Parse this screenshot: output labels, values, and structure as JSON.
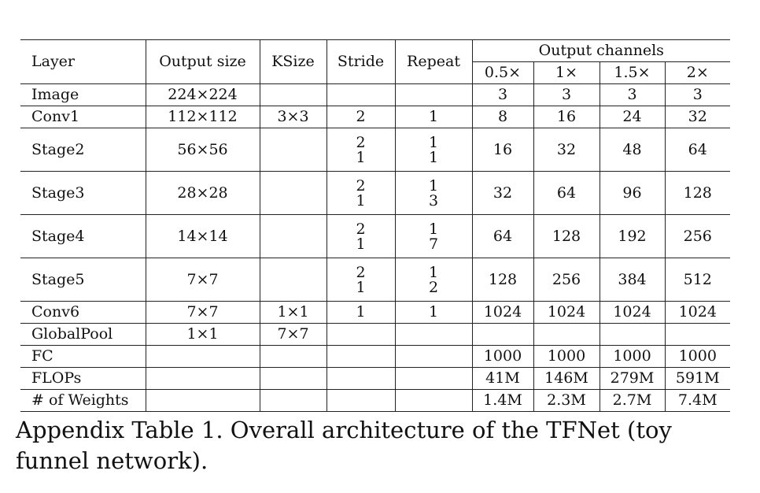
{
  "header": {
    "layer": "Layer",
    "output_size": "Output size",
    "ksize": "KSize",
    "stride": "Stride",
    "repeat": "Repeat",
    "output_channels": "Output channels",
    "channel_scales": [
      "0.5×",
      "1×",
      "1.5×",
      "2×"
    ]
  },
  "rows": [
    {
      "layer": "Image",
      "output_size": "224×224",
      "ksize": "",
      "stride": [
        ""
      ],
      "repeat": [
        ""
      ],
      "channels": [
        "3",
        "3",
        "3",
        "3"
      ]
    },
    {
      "layer": "Conv1",
      "output_size": "112×112",
      "ksize": "3×3",
      "stride": [
        "2"
      ],
      "repeat": [
        "1"
      ],
      "channels": [
        "8",
        "16",
        "24",
        "32"
      ]
    },
    {
      "layer": "Stage2",
      "output_size": "56×56",
      "ksize": "",
      "stride": [
        "2",
        "1"
      ],
      "repeat": [
        "1",
        "1"
      ],
      "channels": [
        "16",
        "32",
        "48",
        "64"
      ]
    },
    {
      "layer": "Stage3",
      "output_size": "28×28",
      "ksize": "",
      "stride": [
        "2",
        "1"
      ],
      "repeat": [
        "1",
        "3"
      ],
      "channels": [
        "32",
        "64",
        "96",
        "128"
      ]
    },
    {
      "layer": "Stage4",
      "output_size": "14×14",
      "ksize": "",
      "stride": [
        "2",
        "1"
      ],
      "repeat": [
        "1",
        "7"
      ],
      "channels": [
        "64",
        "128",
        "192",
        "256"
      ]
    },
    {
      "layer": "Stage5",
      "output_size": "7×7",
      "ksize": "",
      "stride": [
        "2",
        "1"
      ],
      "repeat": [
        "1",
        "2"
      ],
      "channels": [
        "128",
        "256",
        "384",
        "512"
      ]
    },
    {
      "layer": "Conv6",
      "output_size": "7×7",
      "ksize": "1×1",
      "stride": [
        "1"
      ],
      "repeat": [
        "1"
      ],
      "channels": [
        "1024",
        "1024",
        "1024",
        "1024"
      ]
    },
    {
      "layer": "GlobalPool",
      "output_size": "1×1",
      "ksize": "7×7",
      "stride": [
        ""
      ],
      "repeat": [
        ""
      ],
      "channels": [
        "",
        "",
        "",
        ""
      ]
    },
    {
      "layer": "FC",
      "output_size": "",
      "ksize": "",
      "stride": [
        ""
      ],
      "repeat": [
        ""
      ],
      "channels": [
        "1000",
        "1000",
        "1000",
        "1000"
      ]
    },
    {
      "layer": "FLOPs",
      "output_size": "",
      "ksize": "",
      "stride": [
        ""
      ],
      "repeat": [
        ""
      ],
      "channels": [
        "41M",
        "146M",
        "279M",
        "591M"
      ]
    },
    {
      "layer": "# of Weights",
      "output_size": "",
      "ksize": "",
      "stride": [
        ""
      ],
      "repeat": [
        ""
      ],
      "channels": [
        "1.4M",
        "2.3M",
        "2.7M",
        "7.4M"
      ]
    }
  ],
  "caption": "Appendix Table 1. Overall architecture of the TFNet (toy funnel network)."
}
